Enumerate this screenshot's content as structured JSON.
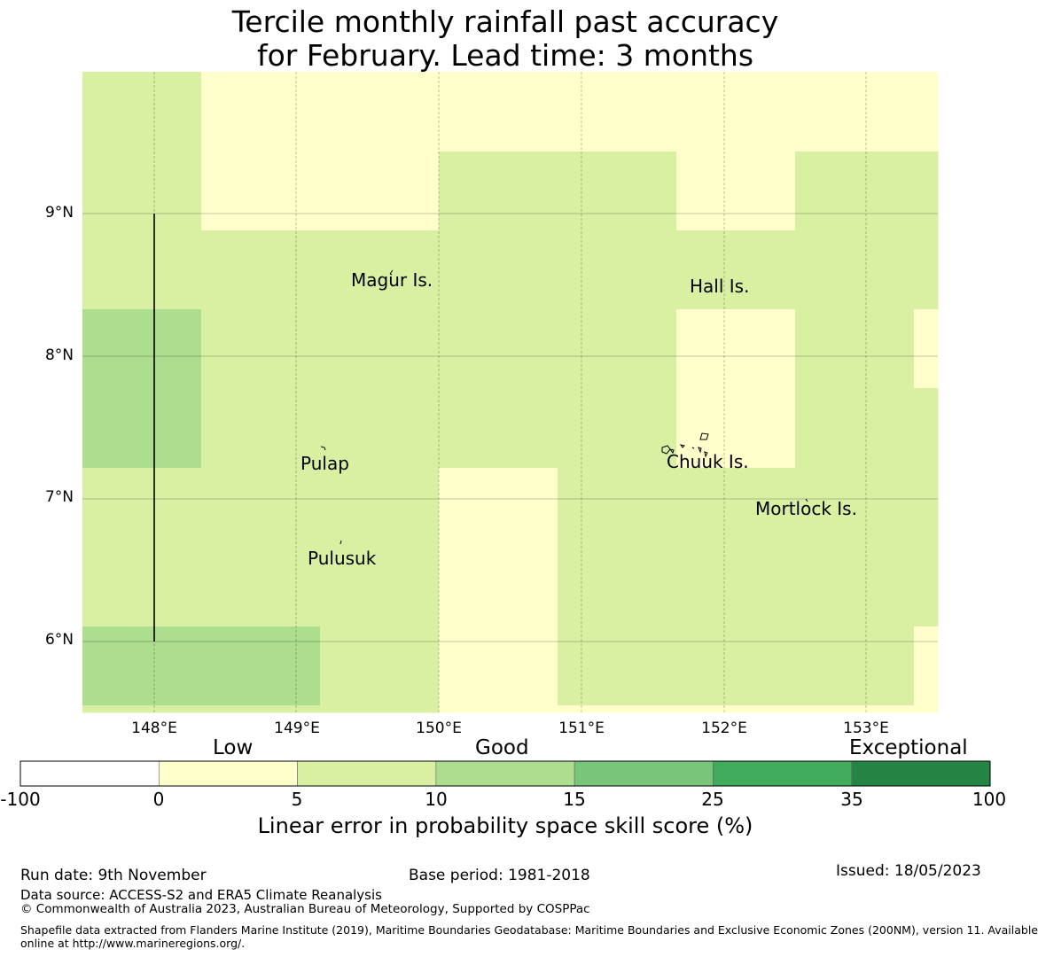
{
  "title_line1": "Tercile monthly rainfall past accuracy",
  "title_line2": "for February. Lead time: 3 months",
  "map": {
    "lat_labels": [
      "9°N",
      "8°N",
      "7°N",
      "6°N"
    ],
    "lon_labels": [
      "148°E",
      "149°E",
      "150°E",
      "151°E",
      "152°E",
      "153°E"
    ],
    "places": [
      "Magur Is.",
      "Hall Is.",
      "Pulap",
      "Chuuk Is.",
      "Mortlock Is.",
      "Pulusuk"
    ],
    "colors": {
      "low": "#ffffcc",
      "good1": "#d9f0a3",
      "good2": "#addd8e"
    }
  },
  "colorbar": {
    "categories": [
      "Low",
      "Good",
      "Exceptional"
    ],
    "ticks": [
      "-100",
      "0",
      "5",
      "10",
      "15",
      "25",
      "35",
      "100"
    ],
    "colors": [
      "#ffffff",
      "#ffffcc",
      "#d9f0a3",
      "#addd8e",
      "#78c679",
      "#41ab5d",
      "#238443"
    ],
    "label": "Linear error in probability space skill score (%)"
  },
  "footer": {
    "run_date": "Run date: 9th November",
    "base_period": "Base period: 1981-2018",
    "issued": "Issued: 18/05/2023",
    "data_source": "Data source: ACCESS-S2 and ERA5 Climate Reanalysis",
    "copyright": "© Commonwealth of Australia 2023, Australian Bureau of Meteorology, Supported by COSPPac",
    "shapefile_line1": "Shapefile data extracted from Flanders Marine Institute (2019), Maritime Boundaries Geodatabase: Maritime Boundaries and Exclusive Economic Zones (200NM), version 11. Available",
    "shapefile_line2": "online at http://www.marineregions.org/."
  }
}
